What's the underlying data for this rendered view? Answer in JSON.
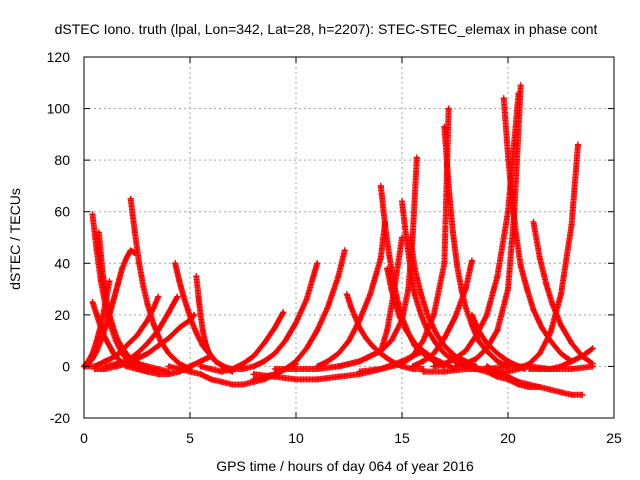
{
  "chart_data": {
    "type": "scatter",
    "title": "dSTEC Iono. truth (lpal, Lon=342, Lat=28, h=2207): STEC-STEC_elemax in phase cont",
    "xlabel": "GPS time / hours of day 064 of year 2016",
    "ylabel": "dSTEC  / TECUs",
    "xlim": [
      0,
      25
    ],
    "ylim": [
      -20,
      120
    ],
    "xticks": [
      0,
      5,
      10,
      15,
      20,
      25
    ],
    "yticks": [
      -20,
      0,
      20,
      40,
      60,
      80,
      100,
      120
    ],
    "grid": true,
    "legend": "none",
    "marker": "+",
    "color": "#ff0000",
    "series": [
      {
        "x": [
          0.0,
          0.2,
          0.4,
          0.6,
          0.8,
          1.0,
          1.2,
          1.4,
          1.6,
          1.8,
          2.0,
          2.2,
          2.4
        ],
        "values": [
          0,
          1,
          3,
          6,
          10,
          15,
          20,
          26,
          32,
          38,
          42,
          45,
          44
        ]
      },
      {
        "x": [
          0.4,
          0.6,
          0.8,
          1.0,
          1.2,
          1.5,
          1.8,
          2.2,
          2.6,
          3.0
        ],
        "values": [
          59,
          45,
          33,
          24,
          17,
          10,
          5,
          1,
          -1,
          -2
        ]
      },
      {
        "x": [
          0.4,
          0.6,
          0.8,
          1.0,
          1.2,
          1.4,
          1.6,
          2.0,
          2.5,
          3.0,
          3.5
        ],
        "values": [
          25,
          20,
          15,
          11,
          8,
          5,
          3,
          0,
          -1,
          -1,
          -2
        ]
      },
      {
        "x": [
          0.0,
          0.2,
          0.4,
          0.6,
          0.8,
          1.0,
          1.2
        ],
        "values": [
          0,
          2,
          5,
          10,
          16,
          24,
          33
        ]
      },
      {
        "x": [
          0.7,
          0.8,
          0.9,
          1.0,
          1.2,
          1.5,
          1.8,
          2.2,
          2.6,
          3.0,
          3.5,
          4.0
        ],
        "values": [
          52,
          43,
          35,
          28,
          20,
          12,
          7,
          3,
          1,
          0,
          -1,
          -2
        ]
      },
      {
        "x": [
          0.0,
          0.5,
          1.0,
          1.5,
          2.0,
          2.5,
          3.0,
          3.3,
          3.5
        ],
        "values": [
          0,
          0,
          2,
          4,
          8,
          12,
          18,
          23,
          27
        ]
      },
      {
        "x": [
          2.2,
          2.4,
          2.6,
          2.8,
          3.0,
          3.3,
          3.6,
          4.0,
          4.5,
          5.0
        ],
        "values": [
          65,
          52,
          40,
          31,
          24,
          16,
          10,
          5,
          1,
          -1
        ]
      },
      {
        "x": [
          0.5,
          1.0,
          1.5,
          2.0,
          2.5,
          3.0,
          3.5,
          4.0,
          4.5,
          5.0,
          5.2
        ],
        "values": [
          -1,
          -1,
          0,
          1,
          3,
          5,
          8,
          11,
          15,
          18,
          20
        ]
      },
      {
        "x": [
          1.0,
          1.5,
          2.0,
          2.5,
          3.0,
          3.5,
          4.0,
          4.4
        ],
        "values": [
          0,
          1,
          2,
          5,
          9,
          14,
          21,
          27
        ]
      },
      {
        "x": [
          4.3,
          4.5,
          4.7,
          4.9,
          5.1,
          5.3,
          5.6,
          5.9,
          6.2,
          6.6,
          7.0
        ],
        "values": [
          40,
          33,
          27,
          22,
          17,
          13,
          8,
          5,
          2,
          0,
          -2
        ]
      },
      {
        "x": [
          5.3,
          5.4,
          5.5,
          5.6,
          5.7,
          5.8,
          6.0,
          6.2
        ],
        "values": [
          35,
          27,
          20,
          14,
          10,
          7,
          4,
          2
        ]
      },
      {
        "x": [
          2.5,
          3.0,
          3.5,
          4.0,
          4.5,
          5.0,
          5.5,
          6.0
        ],
        "values": [
          -1,
          -2,
          -3,
          -3,
          -2,
          0,
          2,
          4
        ]
      },
      {
        "x": [
          4.0,
          4.5,
          5.0,
          5.5,
          6.0,
          6.5,
          7.0,
          7.5,
          8.0,
          8.5,
          9.0,
          9.5,
          10.0
        ],
        "values": [
          0,
          -1,
          -2,
          -3,
          -5,
          -6,
          -7,
          -7,
          -6,
          -5,
          -3,
          -1,
          1
        ]
      },
      {
        "x": [
          5.5,
          6.0,
          6.5,
          7.0,
          7.5,
          8.0,
          8.5,
          9.0,
          9.4
        ],
        "values": [
          0,
          -1,
          -2,
          -1,
          1,
          4,
          9,
          15,
          21
        ]
      },
      {
        "x": [
          6.5,
          7.0,
          7.5,
          8.0,
          8.5,
          9.0,
          9.5,
          10.0,
          10.5,
          11.0
        ],
        "values": [
          0,
          -1,
          -1,
          0,
          2,
          5,
          10,
          17,
          26,
          40
        ]
      },
      {
        "x": [
          8.0,
          8.5,
          9.0,
          9.5,
          10.0,
          10.5,
          11.0,
          11.5,
          12.0,
          12.3
        ],
        "values": [
          -5,
          -4,
          -3,
          -1,
          2,
          7,
          14,
          23,
          35,
          45
        ]
      },
      {
        "x": [
          8.0,
          9.0,
          10.0,
          11.0,
          12.0,
          13.0,
          14.0,
          15.0,
          16.0
        ],
        "values": [
          -3,
          -4,
          -5,
          -5,
          -4,
          -3,
          -1,
          2,
          6
        ]
      },
      {
        "x": [
          11.0,
          11.5,
          12.0,
          12.5,
          13.0,
          13.5,
          14.0,
          14.2
        ],
        "values": [
          0,
          2,
          5,
          10,
          18,
          28,
          42,
          56
        ]
      },
      {
        "x": [
          12.4,
          12.6,
          12.8,
          13.0,
          13.3,
          13.6,
          14.0,
          14.5,
          15.0,
          15.5,
          16.0
        ],
        "values": [
          28,
          23,
          19,
          15,
          11,
          8,
          5,
          2,
          0,
          -1,
          -1
        ]
      },
      {
        "x": [
          9.0,
          10.0,
          11.0,
          12.0,
          13.0,
          14.0,
          14.3,
          14.6,
          15.0
        ],
        "values": [
          -1,
          -1,
          -1,
          0,
          2,
          6,
          14,
          28,
          50
        ]
      },
      {
        "x": [
          14.0,
          14.2,
          14.4,
          14.6,
          14.8,
          15.0,
          15.3,
          15.6,
          16.0,
          16.5,
          17.0
        ],
        "values": [
          70,
          55,
          43,
          33,
          25,
          19,
          13,
          8,
          5,
          2,
          0
        ]
      },
      {
        "x": [
          14.3,
          14.5,
          14.7,
          14.9,
          15.2,
          15.6,
          16.0,
          16.5,
          17.0,
          17.5
        ],
        "values": [
          38,
          30,
          24,
          19,
          14,
          9,
          6,
          3,
          1,
          -1
        ]
      },
      {
        "x": [
          12.0,
          13.0,
          14.0,
          14.5,
          15.0,
          15.3,
          15.5,
          15.7
        ],
        "values": [
          0,
          2,
          6,
          10,
          18,
          30,
          50,
          81
        ]
      },
      {
        "x": [
          15.0,
          15.2,
          15.4,
          15.6,
          15.9,
          16.2,
          16.6,
          17.0,
          17.5,
          18.0,
          18.5
        ],
        "values": [
          64,
          50,
          38,
          28,
          20,
          14,
          9,
          5,
          2,
          0,
          -1
        ]
      },
      {
        "x": [
          15.4,
          15.6,
          15.9,
          16.2,
          16.6,
          17.0,
          17.5,
          18.0,
          18.5
        ],
        "values": [
          50,
          38,
          28,
          20,
          13,
          8,
          4,
          2,
          0
        ]
      },
      {
        "x": [
          13.0,
          14.0,
          15.0,
          15.5,
          16.0,
          16.5,
          17.0,
          17.2
        ],
        "values": [
          -2,
          -1,
          1,
          4,
          10,
          20,
          40,
          100
        ]
      },
      {
        "x": [
          17.0,
          17.2,
          17.4,
          17.6,
          17.8,
          18.0,
          18.3,
          18.6,
          19.0,
          19.5,
          20.0
        ],
        "values": [
          93,
          70,
          52,
          39,
          30,
          23,
          16,
          10,
          6,
          2,
          0
        ]
      },
      {
        "x": [
          15.5,
          16.0,
          16.5,
          17.0,
          17.5,
          18.0,
          18.3
        ],
        "values": [
          0,
          2,
          5,
          11,
          19,
          30,
          41
        ]
      },
      {
        "x": [
          16.5,
          17.0,
          17.5,
          18.0,
          18.5,
          19.0,
          19.5,
          20.0,
          20.5
        ],
        "values": [
          0,
          1,
          3,
          6,
          12,
          20,
          35,
          60,
          106
        ]
      },
      {
        "x": [
          18.3,
          18.6,
          19.0,
          19.5,
          20.0,
          20.5,
          20.8
        ],
        "values": [
          20,
          14,
          9,
          5,
          2,
          0,
          -1
        ]
      },
      {
        "x": [
          19.8,
          20.0,
          20.2,
          20.4,
          20.6,
          20.9,
          21.2,
          21.6,
          22.0,
          22.5,
          23.0
        ],
        "values": [
          104,
          82,
          64,
          50,
          39,
          30,
          22,
          15,
          10,
          5,
          2
        ]
      },
      {
        "x": [
          17.5,
          18.0,
          18.5,
          19.0,
          19.5,
          20.0,
          20.3,
          20.6
        ],
        "values": [
          0,
          1,
          3,
          7,
          14,
          30,
          60,
          109
        ]
      },
      {
        "x": [
          19.5,
          20.0,
          20.5,
          21.0,
          21.5,
          22.0,
          22.5,
          23.0,
          23.3
        ],
        "values": [
          -2,
          -2,
          -1,
          1,
          5,
          13,
          28,
          55,
          86
        ]
      },
      {
        "x": [
          21.2,
          21.5,
          21.8,
          22.1,
          22.5,
          23.0,
          23.5,
          24.0
        ],
        "values": [
          56,
          42,
          32,
          24,
          16,
          9,
          4,
          1
        ]
      },
      {
        "x": [
          19.0,
          19.5,
          20.0,
          20.5,
          21.0,
          21.5,
          22.0,
          22.5,
          23.0,
          23.5
        ],
        "values": [
          0,
          -2,
          -4,
          -6,
          -7,
          -8,
          -9,
          -10,
          -11,
          -11
        ]
      },
      {
        "x": [
          18.0,
          18.5,
          19.0,
          19.5,
          20.0,
          20.5,
          21.0,
          21.5
        ],
        "values": [
          0,
          -1,
          -2,
          -4,
          -5,
          -7,
          -8,
          -8
        ]
      },
      {
        "x": [
          21.0,
          21.5,
          22.0,
          22.5,
          23.0,
          23.5,
          24.0
        ],
        "values": [
          -1,
          -1,
          -1,
          0,
          2,
          4,
          7
        ]
      },
      {
        "x": [
          16.0,
          17.0,
          18.0,
          19.0,
          20.0,
          21.0,
          22.0,
          23.0,
          24.0
        ],
        "values": [
          -2,
          -2,
          -1,
          -1,
          0,
          0,
          -1,
          -1,
          0
        ]
      }
    ]
  }
}
